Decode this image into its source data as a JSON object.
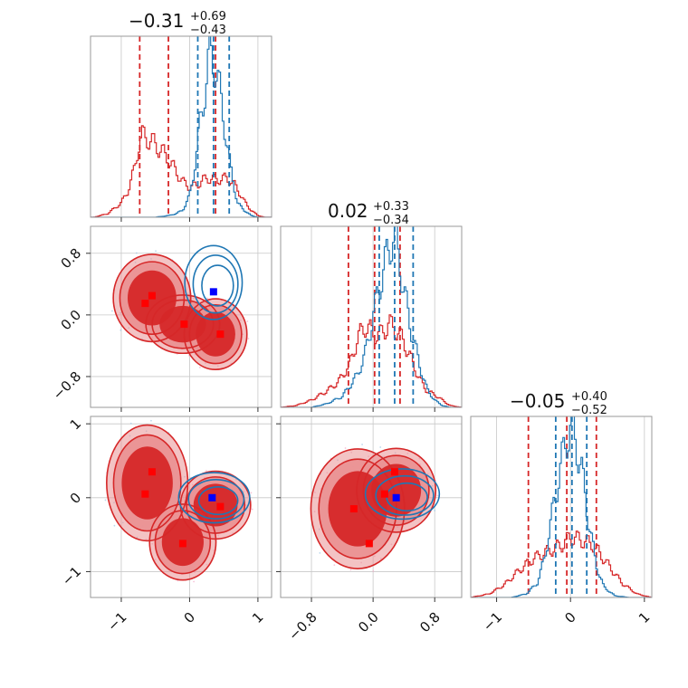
{
  "chart_data": {
    "type": "corner",
    "grid": true,
    "colors": {
      "red": "#d62728",
      "red_light": "#ea9294",
      "blue": "#1f77b4",
      "blue_marker": "#0000ff",
      "red_marker": "#ff0000"
    },
    "axes_ticks": {
      "p0": {
        "values": [
          -1,
          0,
          1
        ],
        "labels": [
          "−1",
          "0",
          "1"
        ],
        "range": [
          -1.45,
          1.2
        ]
      },
      "p1": {
        "values": [
          -0.8,
          0.0,
          0.8
        ],
        "labels": [
          "−0.8",
          "0.0",
          "0.8"
        ],
        "range": [
          -1.2,
          1.15
        ]
      },
      "p2": {
        "values": [
          -1,
          0,
          1
        ],
        "labels": [
          "−1",
          "0",
          "1"
        ],
        "range": [
          -1.35,
          1.1
        ]
      }
    },
    "titles": [
      {
        "param": "p0",
        "median": "−0.31",
        "plus": "+0.69",
        "minus": "−0.43"
      },
      {
        "param": "p1",
        "median": "0.02",
        "plus": "+0.33",
        "minus": "−0.34"
      },
      {
        "param": "p2",
        "median": "−0.05",
        "plus": "+0.40",
        "minus": "−0.52"
      }
    ],
    "marginals": [
      {
        "param": "p0",
        "series": [
          {
            "color": "red",
            "quantiles": [
              -0.73,
              -0.31,
              0.38
            ],
            "x": [
              -1.4,
              -1.2,
              -1.0,
              -0.9,
              -0.8,
              -0.75,
              -0.7,
              -0.6,
              -0.5,
              -0.4,
              -0.3,
              -0.2,
              -0.1,
              0.0,
              0.1,
              0.2,
              0.3,
              0.4,
              0.5,
              0.6,
              0.7,
              0.8,
              0.9,
              1.0,
              1.1,
              1.2
            ],
            "y": [
              0.0,
              0.02,
              0.08,
              0.15,
              0.28,
              0.4,
              0.46,
              0.44,
              0.41,
              0.37,
              0.32,
              0.26,
              0.2,
              0.17,
              0.18,
              0.21,
              0.22,
              0.21,
              0.22,
              0.21,
              0.16,
              0.09,
              0.04,
              0.01,
              0.0,
              0.0
            ]
          },
          {
            "color": "blue",
            "quantiles": [
              0.12,
              0.35,
              0.58
            ],
            "x": [
              -0.5,
              -0.3,
              -0.2,
              -0.1,
              0.0,
              0.05,
              0.1,
              0.15,
              0.2,
              0.25,
              0.3,
              0.35,
              0.4,
              0.45,
              0.5,
              0.55,
              0.6,
              0.65,
              0.7,
              0.8,
              0.9,
              1.0
            ],
            "y": [
              0.0,
              0.01,
              0.02,
              0.04,
              0.12,
              0.22,
              0.36,
              0.52,
              0.64,
              0.78,
              0.96,
              0.88,
              0.8,
              0.7,
              0.55,
              0.4,
              0.28,
              0.18,
              0.08,
              0.04,
              0.01,
              0.0
            ]
          }
        ]
      },
      {
        "param": "p1",
        "series": [
          {
            "color": "red",
            "quantiles": [
              -0.32,
              0.02,
              0.35
            ],
            "x": [
              -1.2,
              -1.0,
              -0.8,
              -0.6,
              -0.45,
              -0.3,
              -0.2,
              -0.1,
              0.0,
              0.1,
              0.2,
              0.3,
              0.4,
              0.5,
              0.6,
              0.7,
              0.8,
              0.9,
              1.0,
              1.15
            ],
            "y": [
              0.0,
              0.01,
              0.04,
              0.09,
              0.14,
              0.24,
              0.38,
              0.45,
              0.41,
              0.4,
              0.46,
              0.43,
              0.36,
              0.26,
              0.16,
              0.09,
              0.07,
              0.04,
              0.01,
              0.0
            ]
          },
          {
            "color": "blue",
            "quantiles": [
              0.08,
              0.28,
              0.52
            ],
            "x": [
              -0.8,
              -0.6,
              -0.4,
              -0.2,
              -0.1,
              0.0,
              0.1,
              0.2,
              0.25,
              0.3,
              0.35,
              0.4,
              0.5,
              0.6,
              0.7,
              0.8,
              0.9,
              1.0
            ],
            "y": [
              0.0,
              0.02,
              0.06,
              0.18,
              0.3,
              0.5,
              0.7,
              0.86,
              0.94,
              0.9,
              0.8,
              0.64,
              0.42,
              0.24,
              0.1,
              0.04,
              0.01,
              0.0
            ]
          }
        ]
      },
      {
        "param": "p2",
        "series": [
          {
            "color": "red",
            "quantiles": [
              -0.57,
              -0.05,
              0.35
            ],
            "x": [
              -1.35,
              -1.1,
              -0.9,
              -0.7,
              -0.5,
              -0.3,
              -0.1,
              0.0,
              0.1,
              0.3,
              0.5,
              0.7,
              0.9,
              1.1
            ],
            "y": [
              0.0,
              0.02,
              0.07,
              0.15,
              0.22,
              0.26,
              0.3,
              0.34,
              0.33,
              0.3,
              0.19,
              0.08,
              0.02,
              0.0
            ]
          },
          {
            "color": "blue",
            "quantiles": [
              -0.2,
              0.02,
              0.22
            ],
            "x": [
              -0.8,
              -0.6,
              -0.45,
              -0.35,
              -0.25,
              -0.15,
              -0.05,
              0.0,
              0.05,
              0.15,
              0.25,
              0.35,
              0.45,
              0.6,
              0.8
            ],
            "y": [
              0.0,
              0.02,
              0.08,
              0.22,
              0.46,
              0.7,
              0.9,
              0.96,
              0.92,
              0.72,
              0.42,
              0.18,
              0.06,
              0.01,
              0.0
            ]
          }
        ]
      }
    ],
    "joint_panels": [
      {
        "x": "p0",
        "y": "p1",
        "red_blobs": [
          {
            "cx": -0.55,
            "cy": 0.22,
            "rx": 0.42,
            "ry": 0.42
          },
          {
            "cx": -0.1,
            "cy": -0.12,
            "rx": 0.4,
            "ry": 0.28
          },
          {
            "cx": 0.38,
            "cy": -0.25,
            "rx": 0.34,
            "ry": 0.34
          }
        ],
        "blue_blobs": [
          {
            "cx": 0.35,
            "cy": 0.42,
            "rx": 0.42,
            "ry": 0.48
          }
        ],
        "red_markers": [
          [
            -0.55,
            0.25
          ],
          [
            -0.65,
            0.15
          ],
          [
            -0.08,
            -0.12
          ],
          [
            0.45,
            -0.25
          ]
        ],
        "blue_marker": [
          0.35,
          0.3
        ]
      },
      {
        "x": "p0",
        "y": "p2",
        "red_blobs": [
          {
            "cx": -0.62,
            "cy": 0.2,
            "rx": 0.44,
            "ry": 0.58
          },
          {
            "cx": -0.1,
            "cy": -0.6,
            "rx": 0.36,
            "ry": 0.38
          },
          {
            "cx": 0.38,
            "cy": -0.1,
            "rx": 0.38,
            "ry": 0.34
          }
        ],
        "blue_blobs": [
          {
            "cx": 0.36,
            "cy": 0.0,
            "rx": 0.52,
            "ry": 0.34
          }
        ],
        "red_markers": [
          [
            -0.55,
            0.35
          ],
          [
            -0.65,
            0.05
          ],
          [
            -0.1,
            -0.62
          ],
          [
            0.45,
            -0.12
          ]
        ],
        "blue_marker": [
          0.33,
          0.0
        ]
      },
      {
        "x": "p1",
        "y": "p2",
        "red_blobs": [
          {
            "cx": -0.2,
            "cy": -0.15,
            "rx": 0.45,
            "ry": 0.6
          },
          {
            "cx": 0.3,
            "cy": 0.1,
            "rx": 0.38,
            "ry": 0.42
          }
        ],
        "blue_blobs": [
          {
            "cx": 0.38,
            "cy": 0.05,
            "rx": 0.48,
            "ry": 0.34
          }
        ],
        "red_markers": [
          [
            -0.25,
            -0.15
          ],
          [
            -0.05,
            -0.62
          ],
          [
            0.15,
            0.05
          ],
          [
            0.28,
            0.35
          ]
        ],
        "blue_marker": [
          0.3,
          0.0
        ]
      }
    ]
  }
}
